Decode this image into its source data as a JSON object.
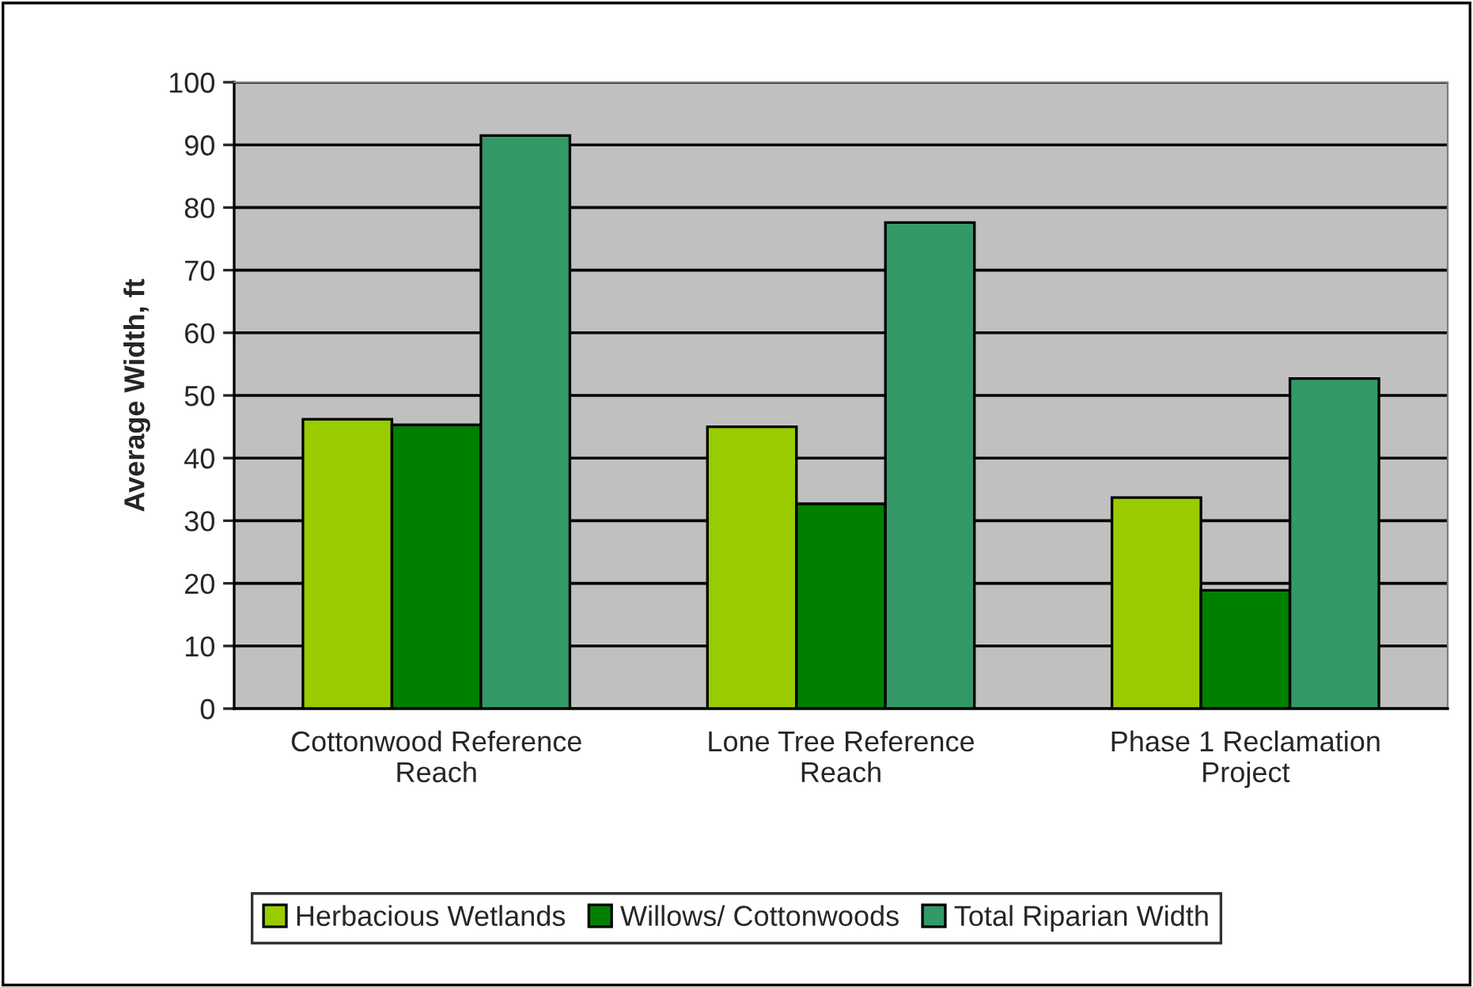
{
  "chart_data": {
    "type": "bar",
    "ylabel": "Average Width, ft",
    "categories": [
      "Cottonwood Reference\nReach",
      "Lone Tree Reference\nReach",
      "Phase 1 Reclamation\nProject"
    ],
    "series": [
      {
        "name": "Herbacious Wetlands",
        "color": "#99cc00",
        "values": [
          46.2,
          45.0,
          33.7
        ]
      },
      {
        "name": "Willows/ Cottonwoods",
        "color": "#008000",
        "values": [
          45.3,
          32.7,
          18.9
        ]
      },
      {
        "name": "Total Riparian Width",
        "color": "#339966",
        "values": [
          91.5,
          77.6,
          52.7
        ]
      }
    ],
    "ylim": [
      0,
      100
    ],
    "yticks": [
      0,
      10,
      20,
      30,
      40,
      50,
      60,
      70,
      80,
      90,
      100
    ],
    "grid": "y",
    "legend": "bottom"
  }
}
